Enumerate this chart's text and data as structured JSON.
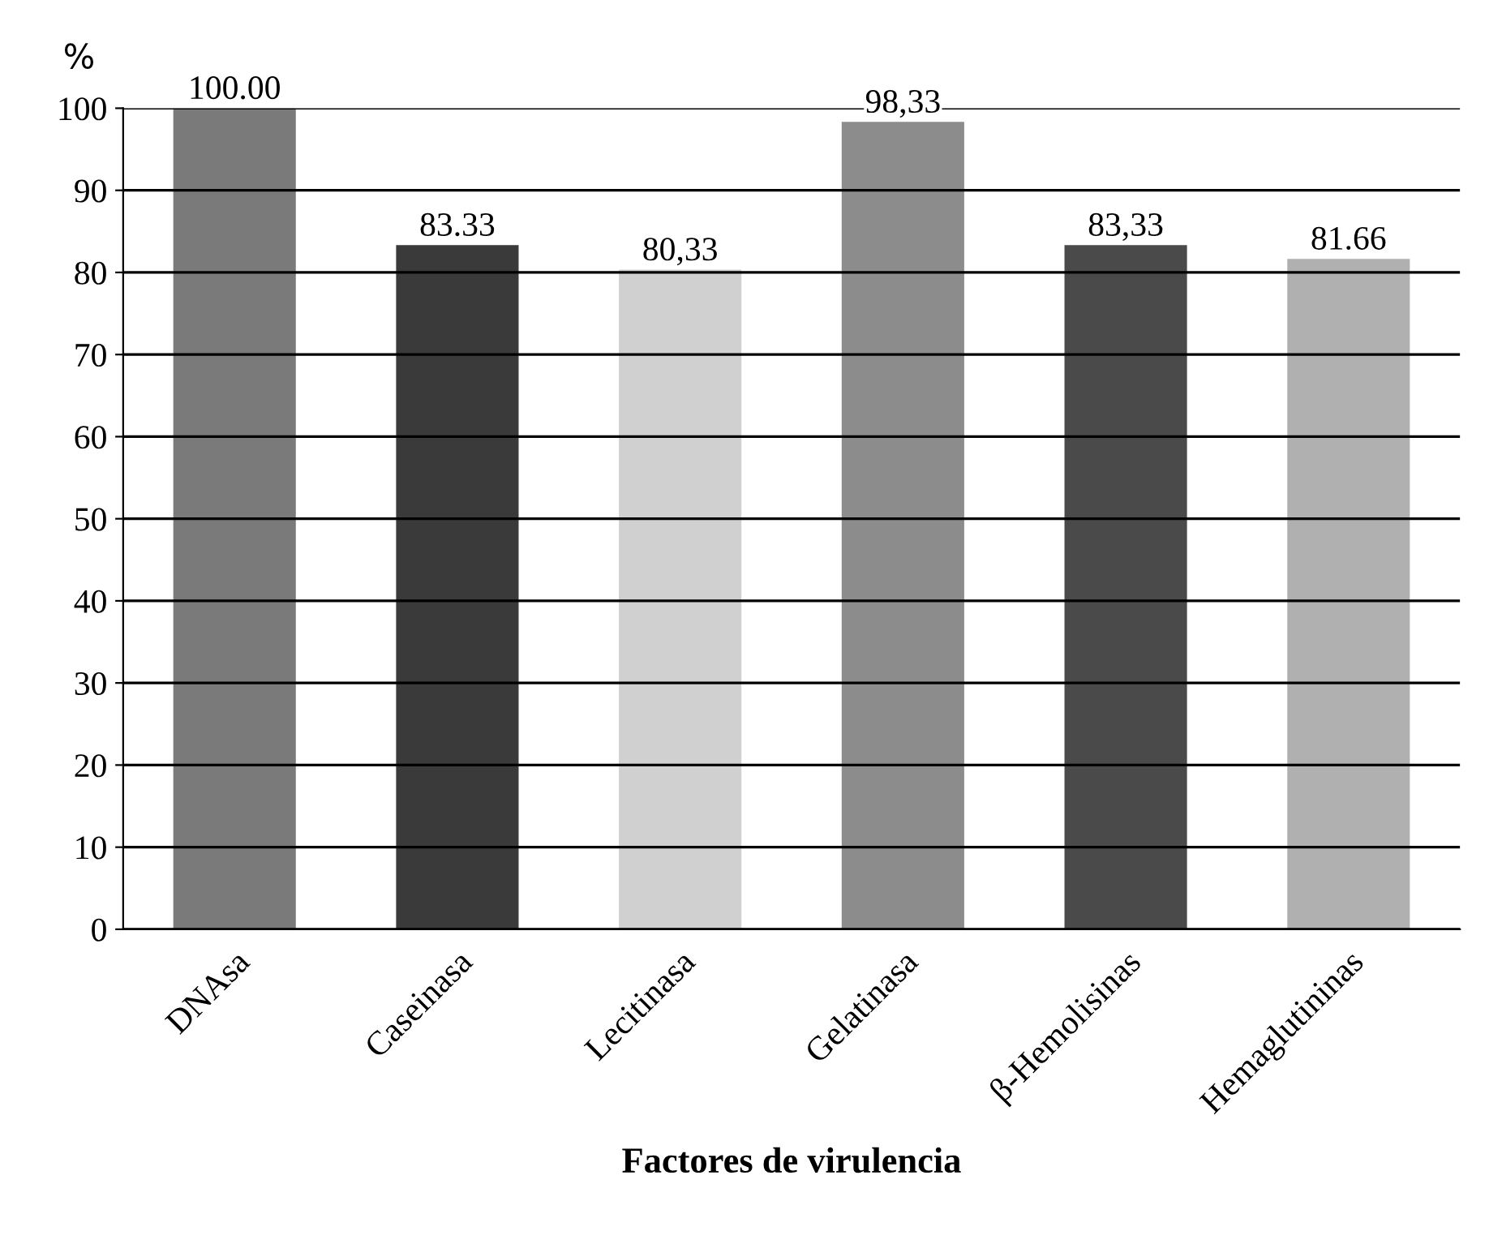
{
  "chart_data": {
    "type": "bar",
    "ylabel": "%",
    "xlabel": "Factores de virulencia",
    "categories": [
      "DNAsa",
      "Caseinasa",
      "Lecitinasa",
      "Gelatinasa",
      "β-Hemolisinas",
      "Hemaglutininas"
    ],
    "values": [
      100.0,
      83.33,
      80.33,
      98.33,
      83.33,
      81.66
    ],
    "value_labels": [
      "100.00",
      "83.33",
      "80,33",
      "98,33",
      "83,33",
      "81.66"
    ],
    "colors": [
      "#7a7a7a",
      "#3a3a3a",
      "#d0d0d0",
      "#8c8c8c",
      "#4a4a4a",
      "#b0b0b0"
    ],
    "ylim": [
      0,
      100
    ],
    "yticks": [
      0,
      10,
      20,
      30,
      40,
      50,
      60,
      70,
      80,
      90,
      100
    ],
    "grid": "y"
  }
}
